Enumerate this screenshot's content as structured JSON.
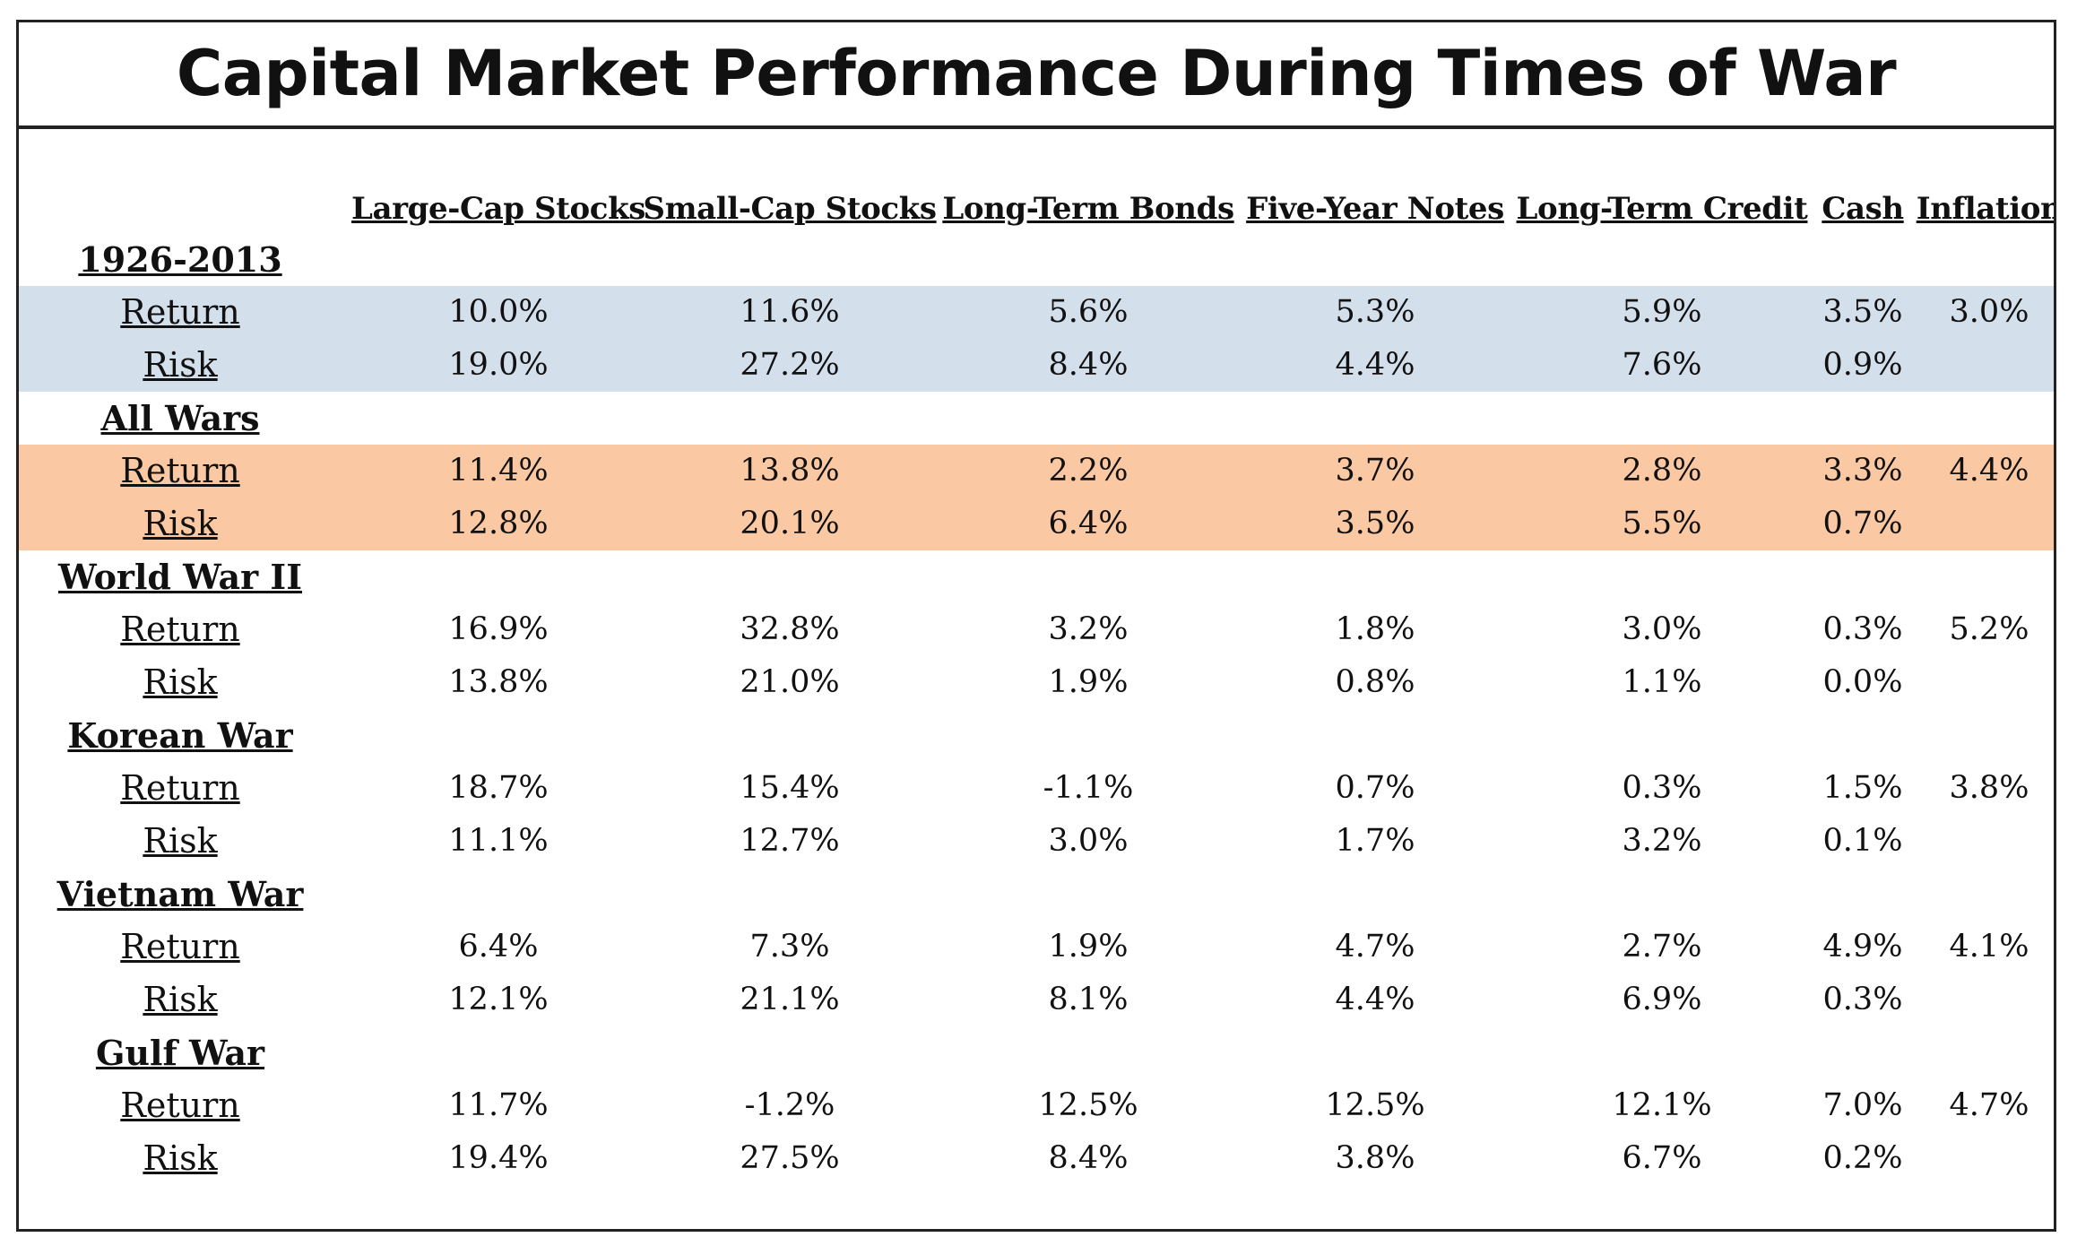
{
  "chart_data": {
    "type": "table",
    "title": "Capital Market Performance During Times of War",
    "columns": [
      "Large-Cap Stocks",
      "Small-Cap Stocks",
      "Long-Term Bonds",
      "Five-Year Notes",
      "Long-Term Credit",
      "Cash",
      "Inflation"
    ],
    "groups": [
      {
        "name": "1926-2013",
        "highlight": "#d4dfec",
        "rows": [
          {
            "label": "Return",
            "values": [
              "10.0%",
              "11.6%",
              "5.6%",
              "5.3%",
              "5.9%",
              "3.5%",
              "3.0%"
            ]
          },
          {
            "label": "Risk",
            "values": [
              "19.0%",
              "27.2%",
              "8.4%",
              "4.4%",
              "7.6%",
              "0.9%",
              ""
            ]
          }
        ]
      },
      {
        "name": "All Wars",
        "highlight": "#fac8a2",
        "rows": [
          {
            "label": "Return",
            "values": [
              "11.4%",
              "13.8%",
              "2.2%",
              "3.7%",
              "2.8%",
              "3.3%",
              "4.4%"
            ]
          },
          {
            "label": "Risk",
            "values": [
              "12.8%",
              "20.1%",
              "6.4%",
              "3.5%",
              "5.5%",
              "0.7%",
              ""
            ]
          }
        ]
      },
      {
        "name": "World War II",
        "highlight": "",
        "rows": [
          {
            "label": "Return",
            "values": [
              "16.9%",
              "32.8%",
              "3.2%",
              "1.8%",
              "3.0%",
              "0.3%",
              "5.2%"
            ]
          },
          {
            "label": "Risk",
            "values": [
              "13.8%",
              "21.0%",
              "1.9%",
              "0.8%",
              "1.1%",
              "0.0%",
              ""
            ]
          }
        ]
      },
      {
        "name": "Korean War",
        "highlight": "",
        "rows": [
          {
            "label": "Return",
            "values": [
              "18.7%",
              "15.4%",
              "-1.1%",
              "0.7%",
              "0.3%",
              "1.5%",
              "3.8%"
            ]
          },
          {
            "label": "Risk",
            "values": [
              "11.1%",
              "12.7%",
              "3.0%",
              "1.7%",
              "3.2%",
              "0.1%",
              ""
            ]
          }
        ]
      },
      {
        "name": "Vietnam War",
        "highlight": "",
        "rows": [
          {
            "label": "Return",
            "values": [
              "6.4%",
              "7.3%",
              "1.9%",
              "4.7%",
              "2.7%",
              "4.9%",
              "4.1%"
            ]
          },
          {
            "label": "Risk",
            "values": [
              "12.1%",
              "21.1%",
              "8.1%",
              "4.4%",
              "6.9%",
              "0.3%",
              ""
            ]
          }
        ]
      },
      {
        "name": "Gulf War",
        "highlight": "",
        "rows": [
          {
            "label": "Return",
            "values": [
              "11.7%",
              "-1.2%",
              "12.5%",
              "12.5%",
              "12.1%",
              "7.0%",
              "4.7%"
            ]
          },
          {
            "label": "Risk",
            "values": [
              "19.4%",
              "27.5%",
              "8.4%",
              "3.8%",
              "6.7%",
              "0.2%",
              ""
            ]
          }
        ]
      }
    ]
  }
}
